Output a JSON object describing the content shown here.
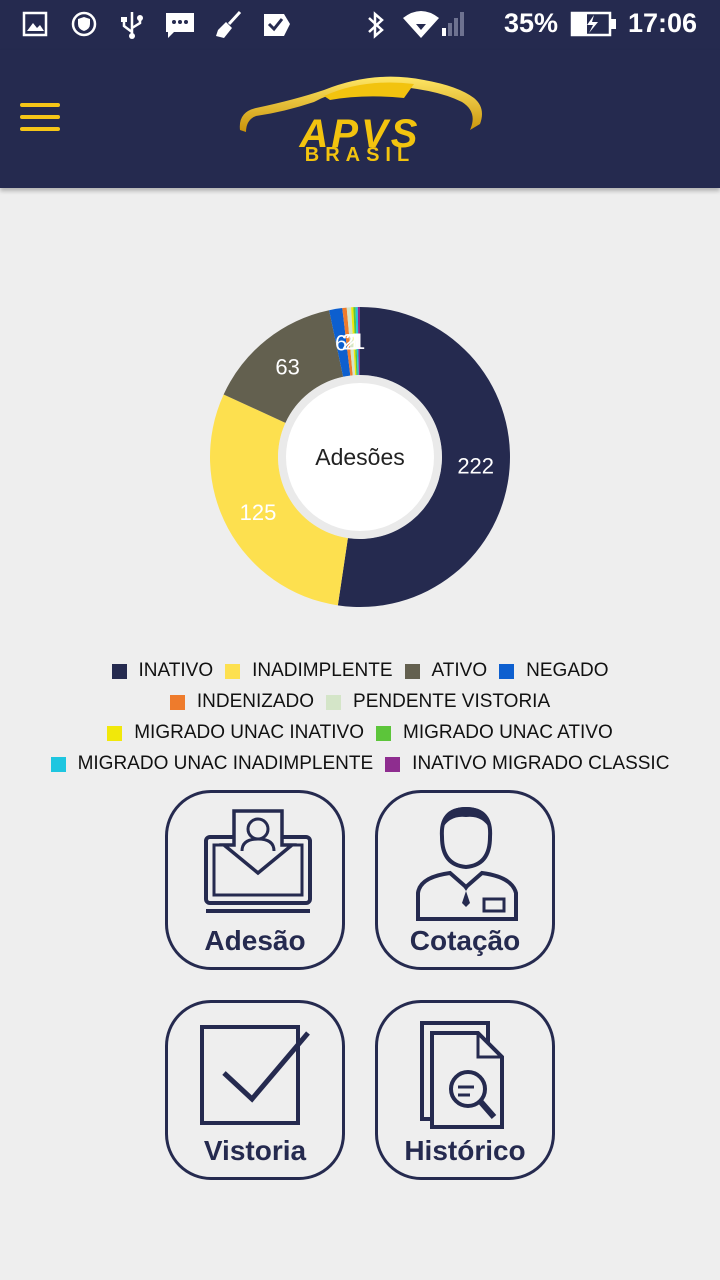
{
  "status_bar": {
    "battery": "35%",
    "time": "17:06",
    "icons": [
      "image-icon",
      "shield-icon",
      "usb-icon",
      "message-icon",
      "broom-icon",
      "check-icon",
      "bluetooth-icon",
      "wifi-icon",
      "signal-icon",
      "battery-charging-icon"
    ]
  },
  "header": {
    "menu_icon": "hamburger-menu-icon",
    "logo": {
      "main": "APVS",
      "sub": "BRASIL"
    },
    "colors": {
      "bar": "#252a4f",
      "accent": "#f2c30f"
    }
  },
  "chart_data": {
    "type": "pie",
    "title": "Adesões",
    "slices": [
      {
        "name": "INATIVO",
        "value": 222,
        "color": "#252a4f",
        "label": "222"
      },
      {
        "name": "INADIMPLENTE",
        "value": 125,
        "color": "#fde04f",
        "label": "125"
      },
      {
        "name": "ATIVO",
        "value": 63,
        "color": "#63604f",
        "label": "63"
      },
      {
        "name": "NEGADO",
        "value": 6,
        "color": "#0d5fcf",
        "label": "6"
      },
      {
        "name": "INDENIZADO",
        "value": 2,
        "color": "#ee7b2c",
        "label": "2"
      },
      {
        "name": "PENDENTE VISTORIA",
        "value": 2,
        "color": "#d4e5c8",
        "label": "2"
      },
      {
        "name": "MIGRADO UNAC INATIVO",
        "value": 1,
        "color": "#f1e80a",
        "label": "1"
      },
      {
        "name": "MIGRADO UNAC ATIVO",
        "value": 1,
        "color": "#5cc53a",
        "label": "1"
      },
      {
        "name": "MIGRADO UNAC INADIMPLENTE",
        "value": 1,
        "color": "#1ec6e0",
        "label": "1"
      },
      {
        "name": "INATIVO MIGRADO CLASSIC",
        "value": 1,
        "color": "#8e2d8f",
        "label": "1"
      }
    ],
    "legend": "bottom"
  },
  "menu": {
    "adesao": "Adesão",
    "cotacao": "Cotação",
    "vistoria": "Vistoria",
    "historico": "Histórico"
  }
}
